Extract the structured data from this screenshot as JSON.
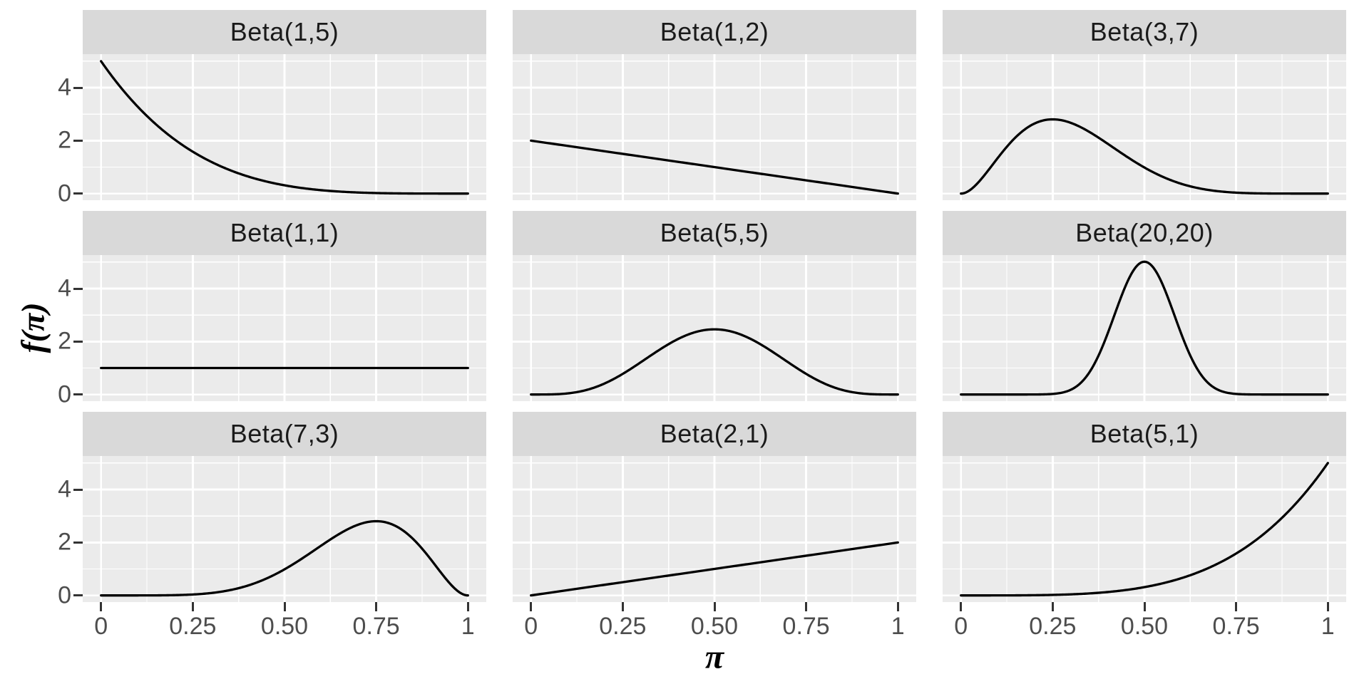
{
  "style": {
    "background": "#FFFFFF",
    "panel_bg": "#EBEBEB",
    "strip_bg": "#D9D9D9",
    "grid_color": "#FFFFFF",
    "curve_color": "#000000",
    "tick_label_color": "#4D4D4D",
    "tick_mark_color": "#333333",
    "strip_text_color": "#1A1A1A",
    "axis_title_color": "#000000"
  },
  "chart_data": {
    "type": "line",
    "facet_layout": "3x3 grid (facet_wrap), shared x and y axes",
    "xlabel": "π",
    "ylabel": "f(π)",
    "xlim": [
      0,
      1
    ],
    "ylim": [
      0,
      5.27
    ],
    "grid": "white major and minor gridlines on gray panel, ggplot2 style",
    "legend": "none",
    "x_ticks": {
      "values": [
        0,
        0.25,
        0.5,
        0.75,
        1
      ],
      "labels": [
        "0",
        "0.25",
        "0.50",
        "0.75",
        "1"
      ],
      "minor": [
        0.125,
        0.375,
        0.625,
        0.875
      ]
    },
    "y_ticks": {
      "values": [
        0,
        2,
        4
      ],
      "labels": [
        "0",
        "2",
        "4"
      ],
      "minor": [
        1,
        3,
        5
      ]
    },
    "sample_x": [
      0,
      0.05,
      0.1,
      0.15,
      0.2,
      0.25,
      0.3,
      0.35,
      0.4,
      0.45,
      0.5,
      0.55,
      0.6,
      0.65,
      0.7,
      0.75,
      0.8,
      0.85,
      0.9,
      0.95,
      1
    ],
    "facets": [
      {
        "title": "Beta(1,5)",
        "alpha": 1,
        "beta": 5,
        "y": [
          5,
          4.073,
          3.281,
          2.61,
          2.048,
          1.582,
          1.2,
          0.893,
          0.648,
          0.458,
          0.313,
          0.205,
          0.128,
          0.075,
          0.041,
          0.02,
          0.008,
          0.003,
          0.001,
          0,
          0
        ]
      },
      {
        "title": "Beta(1,2)",
        "alpha": 1,
        "beta": 2,
        "y": [
          2,
          1.9,
          1.8,
          1.7,
          1.6,
          1.5,
          1.4,
          1.3,
          1.2,
          1.1,
          1,
          0.9,
          0.8,
          0.7,
          0.6,
          0.5,
          0.4,
          0.3,
          0.2,
          0.1,
          0
        ]
      },
      {
        "title": "Beta(3,7)",
        "alpha": 3,
        "beta": 7,
        "y": [
          0,
          0.463,
          1.339,
          2.138,
          2.642,
          2.803,
          2.668,
          2.328,
          1.881,
          1.412,
          0.984,
          0.633,
          0.372,
          0.196,
          0.09,
          0.035,
          0.01,
          0.002,
          0,
          0,
          0
        ]
      },
      {
        "title": "Beta(1,1)",
        "alpha": 1,
        "beta": 1,
        "y": [
          1,
          1,
          1,
          1,
          1,
          1,
          1,
          1,
          1,
          1,
          1,
          1,
          1,
          1,
          1,
          1,
          1,
          1,
          1,
          1,
          1
        ]
      },
      {
        "title": "Beta(5,5)",
        "alpha": 5,
        "beta": 5,
        "y": [
          0,
          0.003,
          0.041,
          0.166,
          0.413,
          0.779,
          1.225,
          1.688,
          2.09,
          2.364,
          2.461,
          2.364,
          2.09,
          1.688,
          1.225,
          0.779,
          0.413,
          0.166,
          0.041,
          0.003,
          0
        ]
      },
      {
        "title": "Beta(20,20)",
        "alpha": 20,
        "beta": 20,
        "y": [
          0,
          0,
          0,
          0,
          0.001,
          0.021,
          0.182,
          0.831,
          2.308,
          4.144,
          5.015,
          4.144,
          2.308,
          0.831,
          0.182,
          0.021,
          0.001,
          0,
          0,
          0,
          0
        ]
      },
      {
        "title": "Beta(7,3)",
        "alpha": 7,
        "beta": 3,
        "y": [
          0,
          0,
          0,
          0.002,
          0.01,
          0.035,
          0.09,
          0.196,
          0.372,
          0.633,
          0.984,
          1.412,
          1.881,
          2.328,
          2.668,
          2.803,
          2.642,
          2.138,
          1.339,
          0.463,
          0
        ]
      },
      {
        "title": "Beta(2,1)",
        "alpha": 2,
        "beta": 1,
        "y": [
          0,
          0.1,
          0.2,
          0.3,
          0.4,
          0.5,
          0.6,
          0.7,
          0.8,
          0.9,
          1,
          1.1,
          1.2,
          1.3,
          1.4,
          1.5,
          1.6,
          1.7,
          1.8,
          1.9,
          2
        ]
      },
      {
        "title": "Beta(5,1)",
        "alpha": 5,
        "beta": 1,
        "y": [
          0,
          0,
          0.001,
          0.003,
          0.008,
          0.02,
          0.041,
          0.075,
          0.128,
          0.205,
          0.313,
          0.458,
          0.648,
          0.893,
          1.2,
          1.582,
          2.048,
          2.61,
          3.281,
          4.073,
          5
        ]
      }
    ]
  }
}
